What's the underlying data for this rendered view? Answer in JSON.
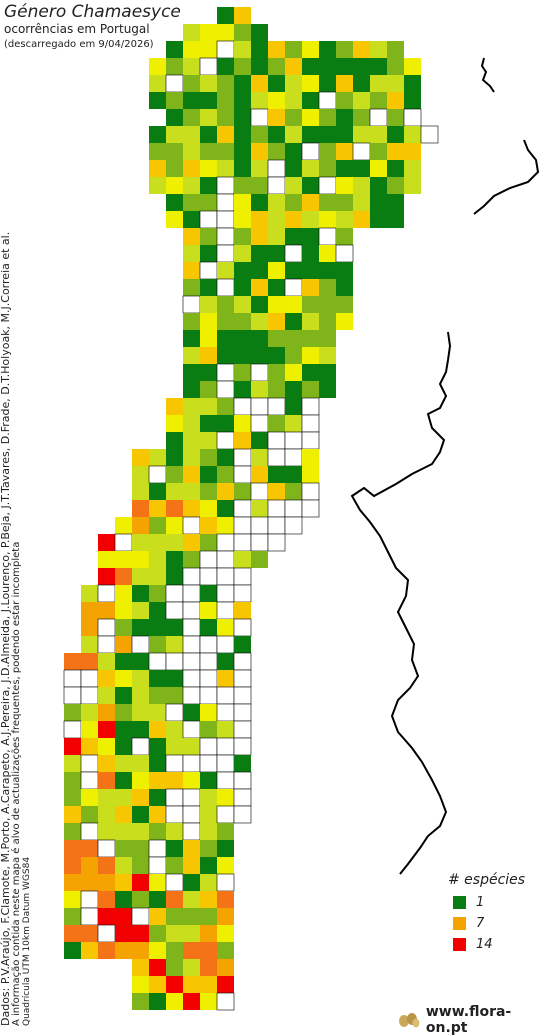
{
  "header": {
    "title": "Género Chamaesyce",
    "subtitle": "ocorrências em Portugal",
    "download_note": "(descarregado em 9/04/2026)"
  },
  "credits": {
    "line1": "Dados: P.V.Araújo, F.Clamote, M.Porto, A.Carapeto, A.J.Pereira, J.D.Almeida, J.Lourenço, P.Beja, J.T.Tavares, D.Frade, D.T.Holyoak, M.J.Correia et al.",
    "line2": "A informação contida neste mapa é alvo de actualizações frequentes, podendo estar incompleta",
    "line3": "Quadrícula UTM 10km Datum WGS84"
  },
  "legend": {
    "title": "# espécies",
    "items": [
      {
        "label": "1",
        "color": "#0a7d12"
      },
      {
        "label": "7",
        "color": "#f5a300"
      },
      {
        "label": "14",
        "color": "#f20000"
      }
    ]
  },
  "colors": {
    "level1": "#0a7d12",
    "level2": "#7fb41a",
    "level3": "#c9df1e",
    "level4": "#eef000",
    "level5": "#f8c600",
    "level6": "#f5a300",
    "level7": "#f37316",
    "level8": "#f20000",
    "empty_cell": "#ffffff",
    "grid_line": "#000000",
    "border_line": "#000000"
  },
  "logo": {
    "text": "www.flora-on.pt",
    "icon": "seed-pods-logo"
  }
}
